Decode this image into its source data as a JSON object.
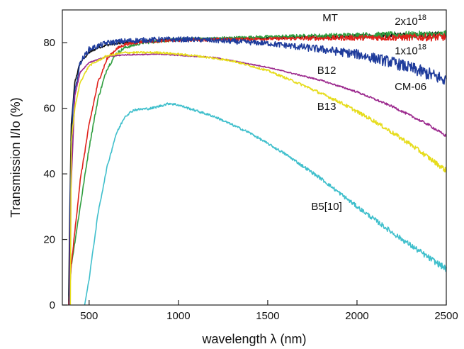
{
  "chart_data": {
    "type": "line",
    "xlabel": "wavelength λ (nm)",
    "ylabel": "Transmission I/Io (%)",
    "xlim": [
      350,
      2500
    ],
    "ylim": [
      0,
      90
    ],
    "xticks": [
      500,
      1000,
      1500,
      2000,
      2500
    ],
    "yticks": [
      0,
      20,
      40,
      60,
      80
    ],
    "grid": false,
    "series": [
      {
        "name": "MT",
        "color": "#111111",
        "noise": 0.35,
        "points": [
          [
            385,
            0
          ],
          [
            392,
            30
          ],
          [
            400,
            55
          ],
          [
            420,
            68
          ],
          [
            450,
            74
          ],
          [
            500,
            77
          ],
          [
            550,
            78.5
          ],
          [
            600,
            79.3
          ],
          [
            700,
            80
          ],
          [
            800,
            80.5
          ],
          [
            1000,
            81
          ],
          [
            1500,
            81.5
          ],
          [
            2000,
            82
          ],
          [
            2500,
            82.5
          ]
        ]
      },
      {
        "name": "2x10^18",
        "color": "#2e9e3e",
        "noise": 0.45,
        "points": [
          [
            385,
            0
          ],
          [
            400,
            12
          ],
          [
            450,
            30
          ],
          [
            500,
            48
          ],
          [
            550,
            63
          ],
          [
            600,
            72
          ],
          [
            650,
            76.5
          ],
          [
            700,
            78.5
          ],
          [
            800,
            80
          ],
          [
            1000,
            81
          ],
          [
            1500,
            81.8
          ],
          [
            2000,
            82.3
          ],
          [
            2500,
            82.5
          ]
        ]
      },
      {
        "name": "1x10^18",
        "color": "#e0201a",
        "noise": 0.45,
        "points": [
          [
            385,
            0
          ],
          [
            400,
            12
          ],
          [
            450,
            38
          ],
          [
            500,
            55
          ],
          [
            550,
            68
          ],
          [
            600,
            75
          ],
          [
            650,
            78
          ],
          [
            700,
            79.5
          ],
          [
            800,
            80.3
          ],
          [
            1000,
            80.8
          ],
          [
            1500,
            81.2
          ],
          [
            2000,
            81.5
          ],
          [
            2500,
            81.7
          ]
        ]
      },
      {
        "name": "CM-06",
        "color": "#1f3c9c",
        "noise": 0.8,
        "points": [
          [
            388,
            0
          ],
          [
            395,
            35
          ],
          [
            410,
            62
          ],
          [
            450,
            74
          ],
          [
            500,
            78
          ],
          [
            600,
            80
          ],
          [
            700,
            80.5
          ],
          [
            900,
            81
          ],
          [
            1100,
            81
          ],
          [
            1500,
            79.8
          ],
          [
            1800,
            78
          ],
          [
            2000,
            76.5
          ],
          [
            2200,
            74
          ],
          [
            2400,
            70.5
          ],
          [
            2500,
            68.5
          ]
        ]
      },
      {
        "name": "B12",
        "color": "#9c2a8e",
        "noise": 0.15,
        "points": [
          [
            392,
            0
          ],
          [
            398,
            35
          ],
          [
            420,
            64
          ],
          [
            450,
            71
          ],
          [
            500,
            74
          ],
          [
            600,
            75.8
          ],
          [
            700,
            76.3
          ],
          [
            900,
            76.5
          ],
          [
            1200,
            75.5
          ],
          [
            1500,
            72.5
          ],
          [
            1800,
            68.5
          ],
          [
            2000,
            65
          ],
          [
            2200,
            60.5
          ],
          [
            2400,
            55
          ],
          [
            2500,
            51.5
          ]
        ]
      },
      {
        "name": "B13",
        "color": "#e6dc1c",
        "noise": 0.3,
        "points": [
          [
            395,
            0
          ],
          [
            400,
            50
          ],
          [
            420,
            60
          ],
          [
            450,
            68
          ],
          [
            500,
            73
          ],
          [
            600,
            76
          ],
          [
            700,
            77
          ],
          [
            900,
            77
          ],
          [
            1100,
            76
          ],
          [
            1300,
            74.5
          ],
          [
            1500,
            71.5
          ],
          [
            1700,
            67
          ],
          [
            1900,
            62
          ],
          [
            2100,
            56
          ],
          [
            2300,
            49
          ],
          [
            2500,
            41
          ]
        ]
      },
      {
        "name": "B5[10]",
        "color": "#3fbfcc",
        "noise": 0.35,
        "points": [
          [
            475,
            0
          ],
          [
            500,
            8
          ],
          [
            550,
            28
          ],
          [
            600,
            42
          ],
          [
            650,
            52
          ],
          [
            700,
            57.5
          ],
          [
            750,
            59.5
          ],
          [
            850,
            60
          ],
          [
            950,
            61.5
          ],
          [
            1000,
            61
          ],
          [
            1200,
            57.5
          ],
          [
            1400,
            52.5
          ],
          [
            1600,
            46
          ],
          [
            1800,
            38.5
          ],
          [
            2000,
            30
          ],
          [
            2200,
            22
          ],
          [
            2400,
            14.5
          ],
          [
            2500,
            11
          ]
        ]
      }
    ],
    "annotations": [
      {
        "text": "MT",
        "x": 1850,
        "y": 86.5
      },
      {
        "text": "2x10",
        "sup": "18",
        "x": 2300,
        "y": 85.5
      },
      {
        "text": "1x10",
        "sup": "18",
        "x": 2300,
        "y": 76.5
      },
      {
        "text": "B12",
        "x": 1830,
        "y": 70.5
      },
      {
        "text": "CM-06",
        "x": 2300,
        "y": 65.5
      },
      {
        "text": "B13",
        "x": 1830,
        "y": 59.5
      },
      {
        "text": "B5[10]",
        "x": 1830,
        "y": 29
      }
    ]
  }
}
